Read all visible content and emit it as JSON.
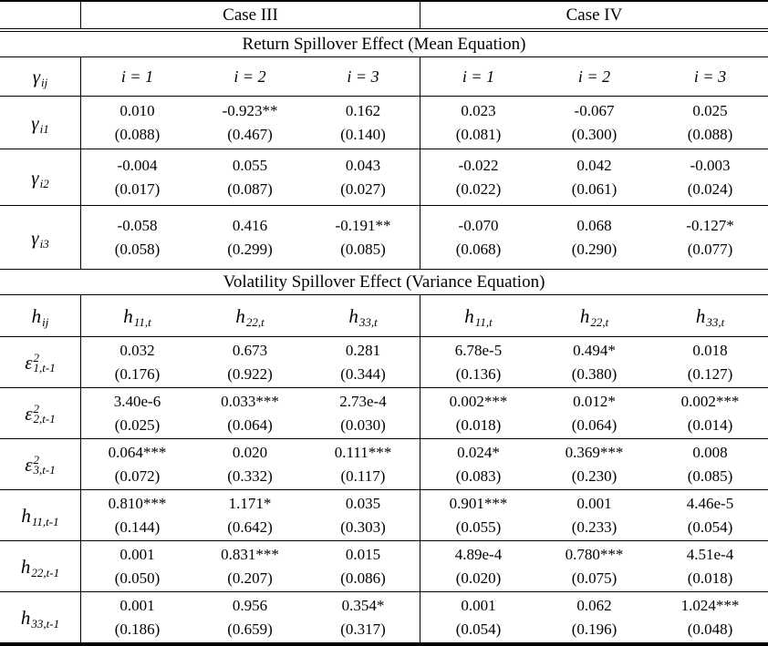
{
  "colors": {
    "ink": "#000000",
    "background": "#ffffff"
  },
  "table": {
    "top_header": {
      "case3": "Case III",
      "case4": "Case IV"
    },
    "sections": [
      {
        "title": "Return Spillover Effect (Mean Equation)",
        "header": {
          "label": {
            "base": "γ",
            "sub": "ij"
          },
          "cols": [
            "i = 1",
            "i = 2",
            "i = 3",
            "i = 1",
            "i = 2",
            "i = 3"
          ]
        },
        "rows": [
          {
            "label": {
              "base": "γ",
              "sub": "i1"
            },
            "cells": [
              {
                "est": "0.010",
                "se": "(0.088)"
              },
              {
                "est": "-0.923**",
                "se": "(0.467)"
              },
              {
                "est": "0.162",
                "se": "(0.140)"
              },
              {
                "est": "0.023",
                "se": "(0.081)"
              },
              {
                "est": "-0.067",
                "se": "(0.300)"
              },
              {
                "est": "0.025",
                "se": "(0.088)"
              }
            ]
          },
          {
            "label": {
              "base": "γ",
              "sub": "i2"
            },
            "cells": [
              {
                "est": "-0.004",
                "se": "(0.017)"
              },
              {
                "est": "0.055",
                "se": "(0.087)"
              },
              {
                "est": "0.043",
                "se": "(0.027)"
              },
              {
                "est": "-0.022",
                "se": "(0.022)"
              },
              {
                "est": "0.042",
                "se": "(0.061)"
              },
              {
                "est": "-0.003",
                "se": "(0.024)"
              }
            ]
          },
          {
            "label": {
              "base": "γ",
              "sub": "i3"
            },
            "cells": [
              {
                "est": "-0.058",
                "se": "(0.058)"
              },
              {
                "est": "0.416",
                "se": "(0.299)"
              },
              {
                "est": "-0.191**",
                "se": "(0.085)"
              },
              {
                "est": "-0.070",
                "se": "(0.068)"
              },
              {
                "est": "0.068",
                "se": "(0.290)"
              },
              {
                "est": "-0.127*",
                "se": "(0.077)"
              }
            ]
          }
        ]
      },
      {
        "title": "Volatility Spillover Effect (Variance Equation)",
        "header": {
          "label": {
            "base": "h",
            "sub": "ij"
          },
          "cols": [
            {
              "base": "h",
              "sub": "11,t"
            },
            {
              "base": "h",
              "sub": "22,t"
            },
            {
              "base": "h",
              "sub": "33,t"
            },
            {
              "base": "h",
              "sub": "11,t"
            },
            {
              "base": "h",
              "sub": "22,t"
            },
            {
              "base": "h",
              "sub": "33,t"
            }
          ]
        },
        "rows": [
          {
            "label": {
              "base": "ε",
              "sup": "2",
              "sub": "1,t-1"
            },
            "cells": [
              {
                "est": "0.032",
                "se": "(0.176)"
              },
              {
                "est": "0.673",
                "se": "(0.922)"
              },
              {
                "est": "0.281",
                "se": "(0.344)"
              },
              {
                "est": "6.78e-5",
                "se": "(0.136)"
              },
              {
                "est": "0.494*",
                "se": "(0.380)"
              },
              {
                "est": "0.018",
                "se": "(0.127)"
              }
            ]
          },
          {
            "label": {
              "base": "ε",
              "sup": "2",
              "sub": "2,t-1"
            },
            "cells": [
              {
                "est": "3.40e-6",
                "se": "(0.025)"
              },
              {
                "est": "0.033***",
                "se": "(0.064)"
              },
              {
                "est": "2.73e-4",
                "se": "(0.030)"
              },
              {
                "est": "0.002***",
                "se": "(0.018)"
              },
              {
                "est": "0.012*",
                "se": "(0.064)"
              },
              {
                "est": "0.002***",
                "se": "(0.014)"
              }
            ]
          },
          {
            "label": {
              "base": "ε",
              "sup": "2",
              "sub": "3,t-1"
            },
            "cells": [
              {
                "est": "0.064***",
                "se": "(0.072)"
              },
              {
                "est": "0.020",
                "se": "(0.332)"
              },
              {
                "est": "0.111***",
                "se": "(0.117)"
              },
              {
                "est": "0.024*",
                "se": "(0.083)"
              },
              {
                "est": "0.369***",
                "se": "(0.230)"
              },
              {
                "est": "0.008",
                "se": "(0.085)"
              }
            ]
          },
          {
            "label": {
              "base": "h",
              "sub": "11,t-1"
            },
            "cells": [
              {
                "est": "0.810***",
                "se": "(0.144)"
              },
              {
                "est": "1.171*",
                "se": "(0.642)"
              },
              {
                "est": "0.035",
                "se": "(0.303)"
              },
              {
                "est": "0.901***",
                "se": "(0.055)"
              },
              {
                "est": "0.001",
                "se": "(0.233)"
              },
              {
                "est": "4.46e-5",
                "se": "(0.054)"
              }
            ]
          },
          {
            "label": {
              "base": "h",
              "sub": "22,t-1"
            },
            "cells": [
              {
                "est": "0.001",
                "se": "(0.050)"
              },
              {
                "est": "0.831***",
                "se": "(0.207)"
              },
              {
                "est": "0.015",
                "se": "(0.086)"
              },
              {
                "est": "4.89e-4",
                "se": "(0.020)"
              },
              {
                "est": "0.780***",
                "se": "(0.075)"
              },
              {
                "est": "4.51e-4",
                "se": "(0.018)"
              }
            ]
          },
          {
            "label": {
              "base": "h",
              "sub": "33,t-1"
            },
            "cells": [
              {
                "est": "0.001",
                "se": "(0.186)"
              },
              {
                "est": "0.956",
                "se": "(0.659)"
              },
              {
                "est": "0.354*",
                "se": "(0.317)"
              },
              {
                "est": "0.001",
                "se": "(0.054)"
              },
              {
                "est": "0.062",
                "se": "(0.196)"
              },
              {
                "est": "1.024***",
                "se": "(0.048)"
              }
            ]
          }
        ]
      }
    ]
  }
}
